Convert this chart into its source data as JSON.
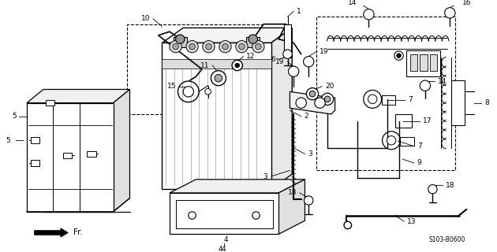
{
  "background_color": "#ffffff",
  "code": "S103-B0600",
  "fig_w": 6.3,
  "fig_h": 3.2,
  "dpi": 100
}
